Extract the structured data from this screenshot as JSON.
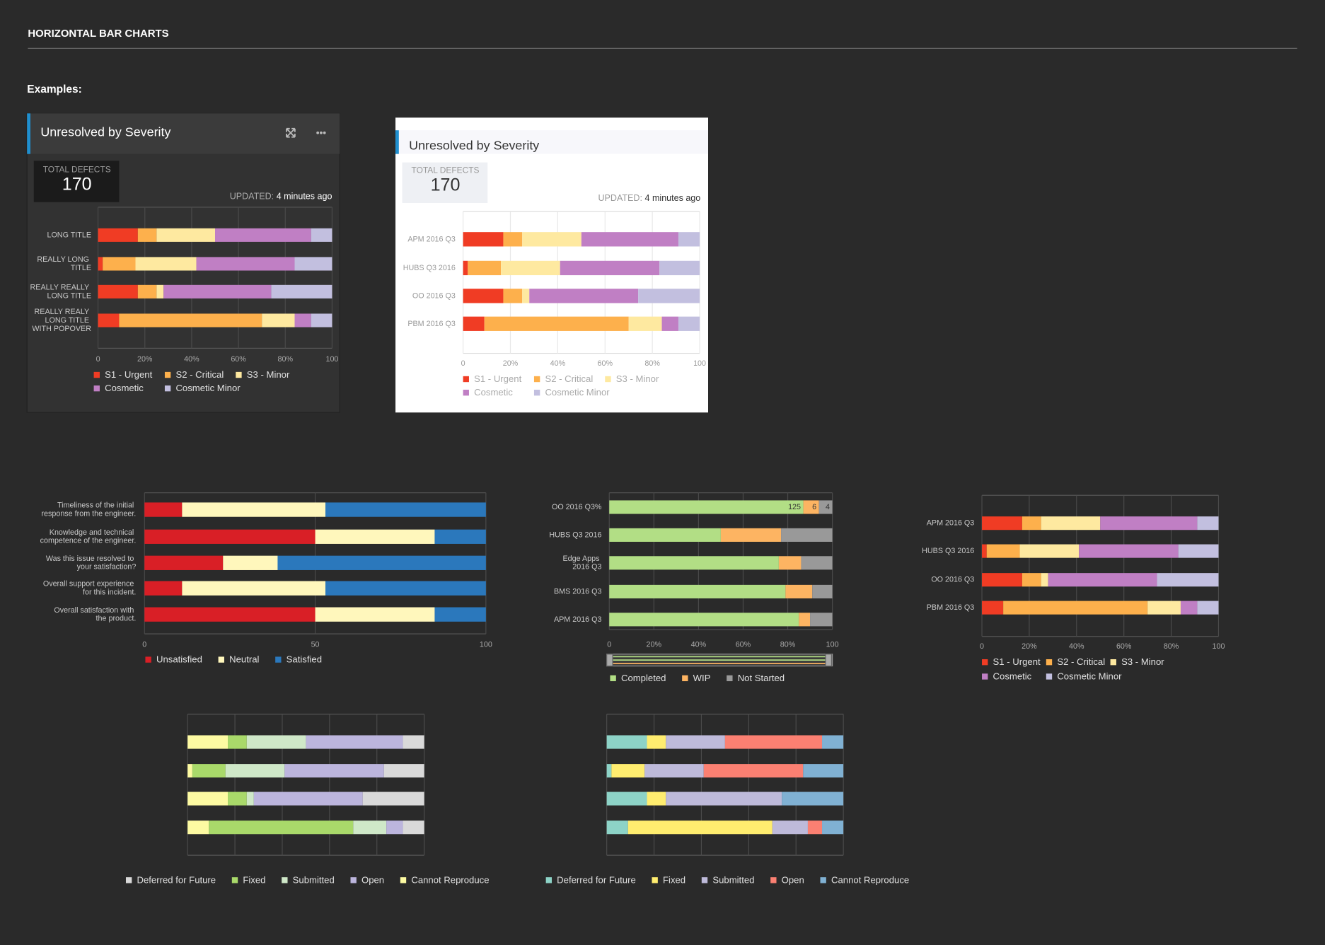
{
  "header": {
    "title": "HORIZONTAL BAR CHARTS",
    "subtitle": "Examples:"
  },
  "chart_data": [
    {
      "type": "bar",
      "orientation": "horizontal",
      "stacked": true,
      "theme": "dark",
      "grid": true,
      "title": "Unresolved by Severity",
      "total_label": "TOTAL DEFECTS",
      "total_value": 170,
      "updated_label": "UPDATED:",
      "updated_value": "4 minutes ago",
      "categories": [
        "LONG TITLE",
        "REALLY LONG TITLE",
        "REALLY REALLY LONG TITLE",
        "REALLY REALY LONG TITLE WITH POPOVER"
      ],
      "series": [
        {
          "name": "S1 - Urgent",
          "color": "#f03c24",
          "values": [
            17,
            2,
            17,
            9
          ]
        },
        {
          "name": "S2 - Critical",
          "color": "#fdb04c",
          "values": [
            8,
            14,
            8,
            61
          ]
        },
        {
          "name": "S3 - Minor",
          "color": "#fee9a0",
          "values": [
            25,
            26,
            3,
            14
          ]
        },
        {
          "name": "Cosmetic",
          "color": "#c07fc4",
          "values": [
            41,
            42,
            46,
            7
          ]
        },
        {
          "name": "Cosmetic Minor",
          "color": "#c2bfdf",
          "values": [
            9,
            16,
            26,
            9
          ]
        }
      ],
      "xlim": [
        0,
        100
      ],
      "xticks": [
        0,
        {
          "value": 20,
          "label": "20%"
        },
        {
          "value": 40,
          "label": "40%"
        },
        {
          "value": 60,
          "label": "60%"
        },
        {
          "value": 80,
          "label": "80%"
        },
        100
      ]
    },
    {
      "type": "bar",
      "orientation": "horizontal",
      "stacked": true,
      "theme": "light",
      "grid": true,
      "title": "Unresolved by Severity",
      "total_label": "TOTAL DEFECTS",
      "total_value": 170,
      "updated_label": "UPDATED:",
      "updated_value": "4 minutes ago",
      "categories": [
        "APM 2016 Q3",
        "HUBS Q3 2016",
        "OO 2016 Q3",
        "PBM 2016 Q3"
      ],
      "series": [
        {
          "name": "S1 - Urgent",
          "color": "#f03c24",
          "values": [
            17,
            2,
            17,
            9
          ]
        },
        {
          "name": "S2 - Critical",
          "color": "#fdb04c",
          "values": [
            8,
            14,
            8,
            61
          ]
        },
        {
          "name": "S3 - Minor",
          "color": "#fee9a0",
          "values": [
            25,
            25,
            3,
            14
          ]
        },
        {
          "name": "Cosmetic",
          "color": "#c07fc4",
          "values": [
            41,
            42,
            46,
            7
          ]
        },
        {
          "name": "Cosmetic Minor",
          "color": "#c2bfdf",
          "values": [
            9,
            17,
            26,
            9
          ]
        }
      ],
      "xlim": [
        0,
        100
      ],
      "xticks": [
        0,
        {
          "value": 20,
          "label": "20%"
        },
        {
          "value": 40,
          "label": "40%"
        },
        {
          "value": 60,
          "label": "60%"
        },
        {
          "value": 80,
          "label": "80%"
        },
        100
      ]
    },
    {
      "type": "bar",
      "orientation": "horizontal",
      "stacked": true,
      "theme": "dark",
      "grid": true,
      "categories": [
        "Timeliness of the initial response from the engineer.",
        "Knowledge and technical competence of the engineer.",
        "Was this issue resolved to your satisfaction?",
        "Overall support experience for this incident.",
        "Overall satisfaction with the product."
      ],
      "series": [
        {
          "name": "Unsatisfied",
          "color": "#d91f26",
          "values": [
            11,
            50,
            23,
            11,
            50
          ]
        },
        {
          "name": "Neutral",
          "color": "#fff7bc",
          "values": [
            42,
            35,
            16,
            42,
            35
          ]
        },
        {
          "name": "Satisfied",
          "color": "#2b78bc",
          "values": [
            47,
            15,
            61,
            47,
            15
          ]
        }
      ],
      "xlim": [
        0,
        100
      ],
      "xticks": [
        0,
        50,
        100
      ]
    },
    {
      "type": "bar",
      "orientation": "horizontal",
      "stacked": true,
      "theme": "dark",
      "grid": true,
      "categories": [
        "OO 2016 Q3%",
        "HUBS Q3 2016",
        "Edge Apps 2016 Q3",
        "BMS 2016 Q3",
        "APM 2016 Q3"
      ],
      "series": [
        {
          "name": "Completed",
          "color": "#b2de85",
          "values": [
            87,
            50,
            76,
            79,
            85
          ]
        },
        {
          "name": "WIP",
          "color": "#fdb462",
          "values": [
            7,
            27,
            10,
            12,
            5
          ]
        },
        {
          "name": "Not Started",
          "color": "#999999",
          "values": [
            6,
            23,
            14,
            9,
            10
          ]
        }
      ],
      "segment_labels": [
        "125",
        "6",
        "4"
      ],
      "xlim": [
        0,
        100
      ],
      "xticks": [
        0,
        {
          "value": 20,
          "label": "20%"
        },
        {
          "value": 40,
          "label": "40%"
        },
        {
          "value": 60,
          "label": "60%"
        },
        {
          "value": 80,
          "label": "80%"
        },
        100
      ]
    },
    {
      "type": "bar",
      "orientation": "horizontal",
      "stacked": true,
      "theme": "dark",
      "grid": true,
      "categories": [
        "APM 2016 Q3",
        "HUBS Q3 2016",
        "OO 2016 Q3",
        "PBM 2016 Q3"
      ],
      "series": [
        {
          "name": "S1 - Urgent",
          "color": "#f03c24",
          "values": [
            17,
            2,
            17,
            9
          ]
        },
        {
          "name": "S2 - Critical",
          "color": "#fdb04c",
          "values": [
            8,
            14,
            8,
            61
          ]
        },
        {
          "name": "S3 - Minor",
          "color": "#fee9a0",
          "values": [
            25,
            25,
            3,
            14
          ]
        },
        {
          "name": "Cosmetic",
          "color": "#c07fc4",
          "values": [
            41,
            42,
            46,
            7
          ]
        },
        {
          "name": "Cosmetic Minor",
          "color": "#c2bfdf",
          "values": [
            9,
            17,
            26,
            9
          ]
        }
      ],
      "xlim": [
        0,
        100
      ],
      "xticks": [
        0,
        {
          "value": 20,
          "label": "20%"
        },
        {
          "value": 40,
          "label": "40%"
        },
        {
          "value": 60,
          "label": "60%"
        },
        {
          "value": 80,
          "label": "80%"
        },
        100
      ]
    },
    {
      "type": "bar",
      "orientation": "horizontal",
      "stacked": true,
      "theme": "dark",
      "grid": true,
      "tick_labels": false,
      "categories": [
        null,
        null,
        null,
        null
      ],
      "series": [
        {
          "name": "Deferred for Future",
          "color": "#d9d9d9",
          "values": [
            9,
            17,
            26,
            9
          ]
        },
        {
          "name": "Fixed",
          "color": "#a9d96a",
          "values": [
            8,
            14,
            8,
            61
          ]
        },
        {
          "name": "Submitted",
          "color": "#cfe8c8",
          "values": [
            25,
            25,
            3,
            14
          ]
        },
        {
          "name": "Open",
          "color": "#bcb5dd",
          "values": [
            41,
            42,
            46,
            7
          ]
        },
        {
          "name": "Cannot Reproduce",
          "color": "#fdfaa2",
          "values": [
            17,
            2,
            17,
            9
          ]
        }
      ],
      "stack_order": [
        4,
        1,
        2,
        3,
        0
      ],
      "xlim": [
        0,
        100
      ],
      "xticks": [
        0,
        20,
        40,
        60,
        80,
        100
      ]
    },
    {
      "type": "bar",
      "orientation": "horizontal",
      "stacked": true,
      "theme": "dark",
      "grid": true,
      "tick_labels": false,
      "categories": [
        null,
        null,
        null,
        null
      ],
      "series": [
        {
          "name": "Deferred for Future",
          "color": "#8dd3c7",
          "values": [
            17,
            2,
            17,
            9
          ]
        },
        {
          "name": "Fixed",
          "color": "#ffed6f",
          "values": [
            8,
            14,
            8,
            61
          ]
        },
        {
          "name": "Submitted",
          "color": "#bebada",
          "values": [
            25,
            25,
            49,
            15
          ]
        },
        {
          "name": "Open",
          "color": "#fb8072",
          "values": [
            41,
            42,
            0,
            6
          ]
        },
        {
          "name": "Cannot Reproduce",
          "color": "#80b1d3",
          "values": [
            9,
            17,
            26,
            9
          ]
        }
      ],
      "xlim": [
        0,
        100
      ],
      "xticks": [
        0,
        20,
        40,
        60,
        80,
        100
      ]
    }
  ]
}
